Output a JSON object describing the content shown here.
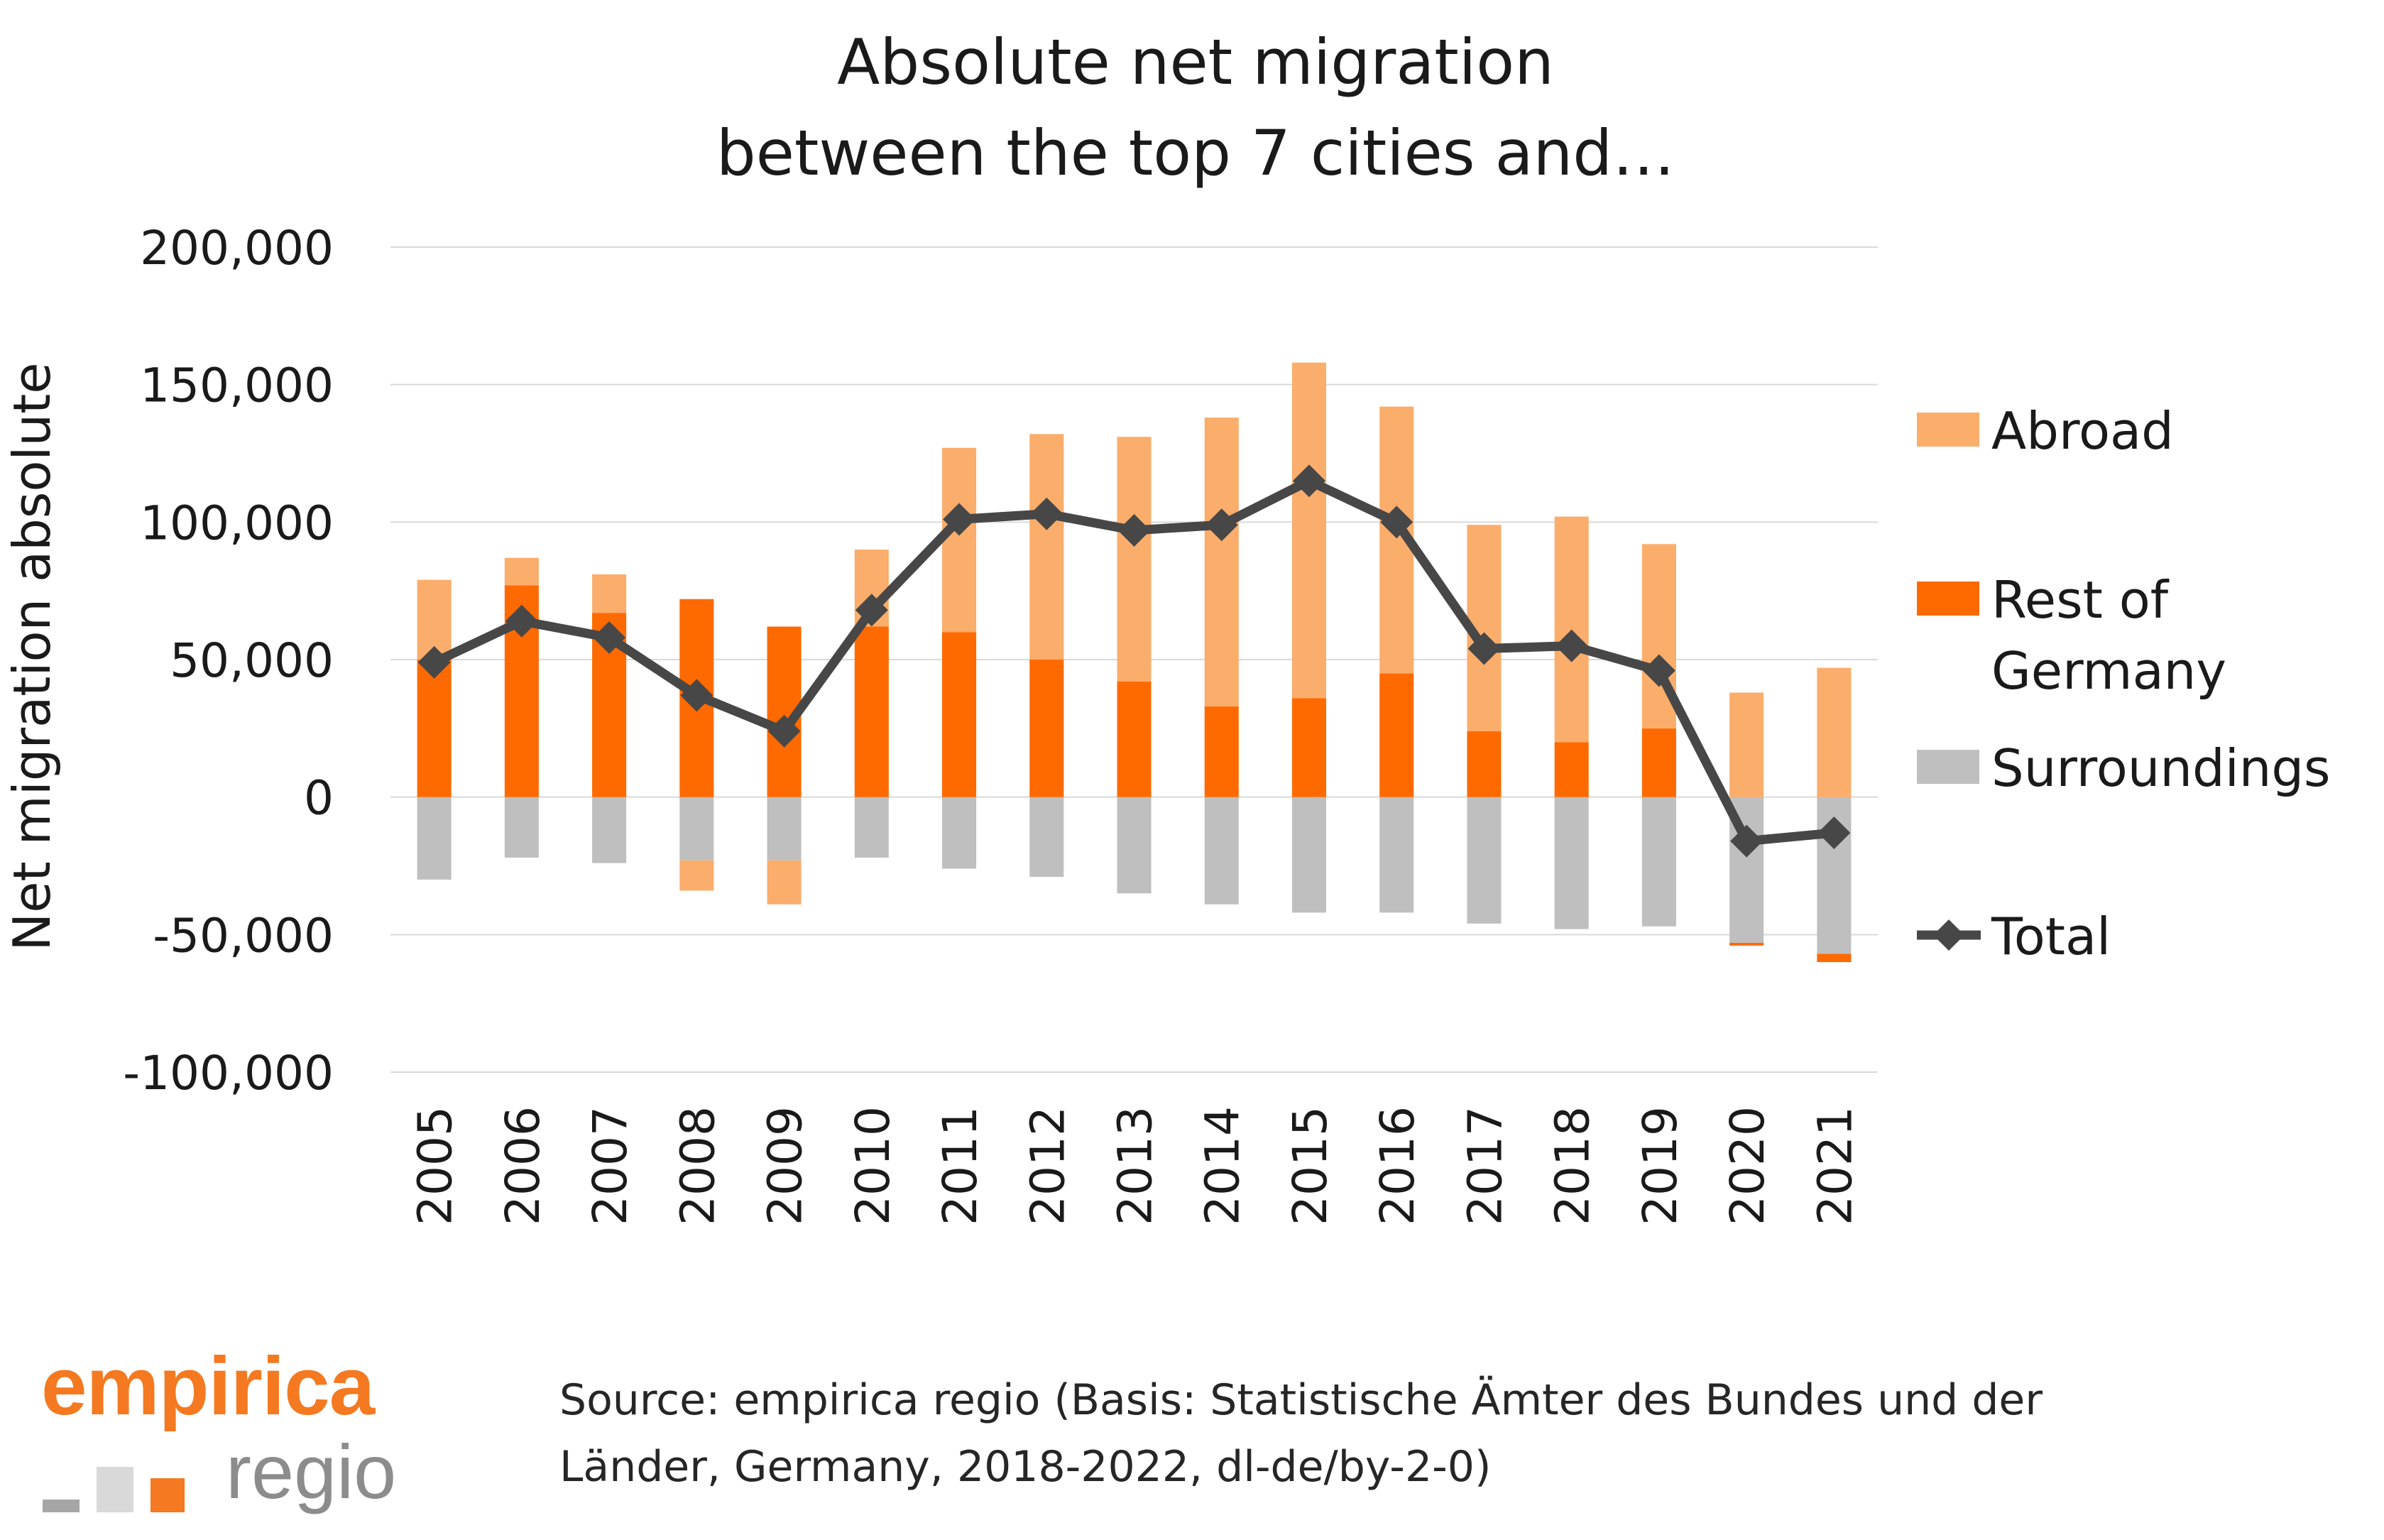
{
  "chart_data": {
    "type": "bar",
    "title": [
      "Absolute net migration",
      "between the top 7 cities and…"
    ],
    "xlabel": "",
    "ylabel": "Net migration absolute",
    "ylim": [
      -100000,
      200000
    ],
    "yticks": [
      200000,
      150000,
      100000,
      50000,
      0,
      -50000,
      -100000
    ],
    "ytick_labels": [
      "200,000",
      "150,000",
      "100,000",
      "50,000",
      "0",
      "-50,000",
      "-100,000"
    ],
    "gridlines": true,
    "legend_position": "right",
    "categories": [
      "2005",
      "2006",
      "2007",
      "2008",
      "2009",
      "2010",
      "2011",
      "2012",
      "2013",
      "2014",
      "2015",
      "2016",
      "2017",
      "2018",
      "2019",
      "2020",
      "2021"
    ],
    "series": [
      {
        "name": "Abroad",
        "kind": "stacked-bar",
        "color": "#fbad6b",
        "values": [
          29000,
          10000,
          14000,
          -11000,
          -16000,
          28000,
          67000,
          82000,
          89000,
          105000,
          122000,
          97000,
          75000,
          82000,
          67000,
          38000,
          47000
        ]
      },
      {
        "name": "Rest of Germany",
        "kind": "stacked-bar",
        "color": "#ff6a00",
        "values": [
          50000,
          77000,
          67000,
          72000,
          62000,
          62000,
          60000,
          50000,
          42000,
          33000,
          36000,
          45000,
          24000,
          20000,
          25000,
          -1000,
          -3000
        ]
      },
      {
        "name": "Surroundings",
        "kind": "stacked-bar",
        "color": "#bfbfbf",
        "values": [
          -30000,
          -22000,
          -24000,
          -23000,
          -23000,
          -22000,
          -26000,
          -29000,
          -35000,
          -39000,
          -42000,
          -42000,
          -46000,
          -48000,
          -47000,
          -53000,
          -57000
        ]
      },
      {
        "name": "Total",
        "kind": "line",
        "color": "#474747",
        "values": [
          49000,
          64000,
          58000,
          37000,
          24000,
          68000,
          101000,
          103000,
          97000,
          99000,
          115000,
          100000,
          54000,
          55000,
          46000,
          -16000,
          -13000
        ]
      }
    ]
  },
  "logo": {
    "name": "empirica",
    "sub": "regio",
    "colors": [
      "#a6a6a6",
      "#d9d9d9",
      "#f47920"
    ]
  },
  "source": {
    "line1": "Source: empirica regio (Basis: Statistische Ämter des Bundes und der",
    "line2": "Länder, Germany, 2018-2022, dl-de/by-2-0)"
  }
}
